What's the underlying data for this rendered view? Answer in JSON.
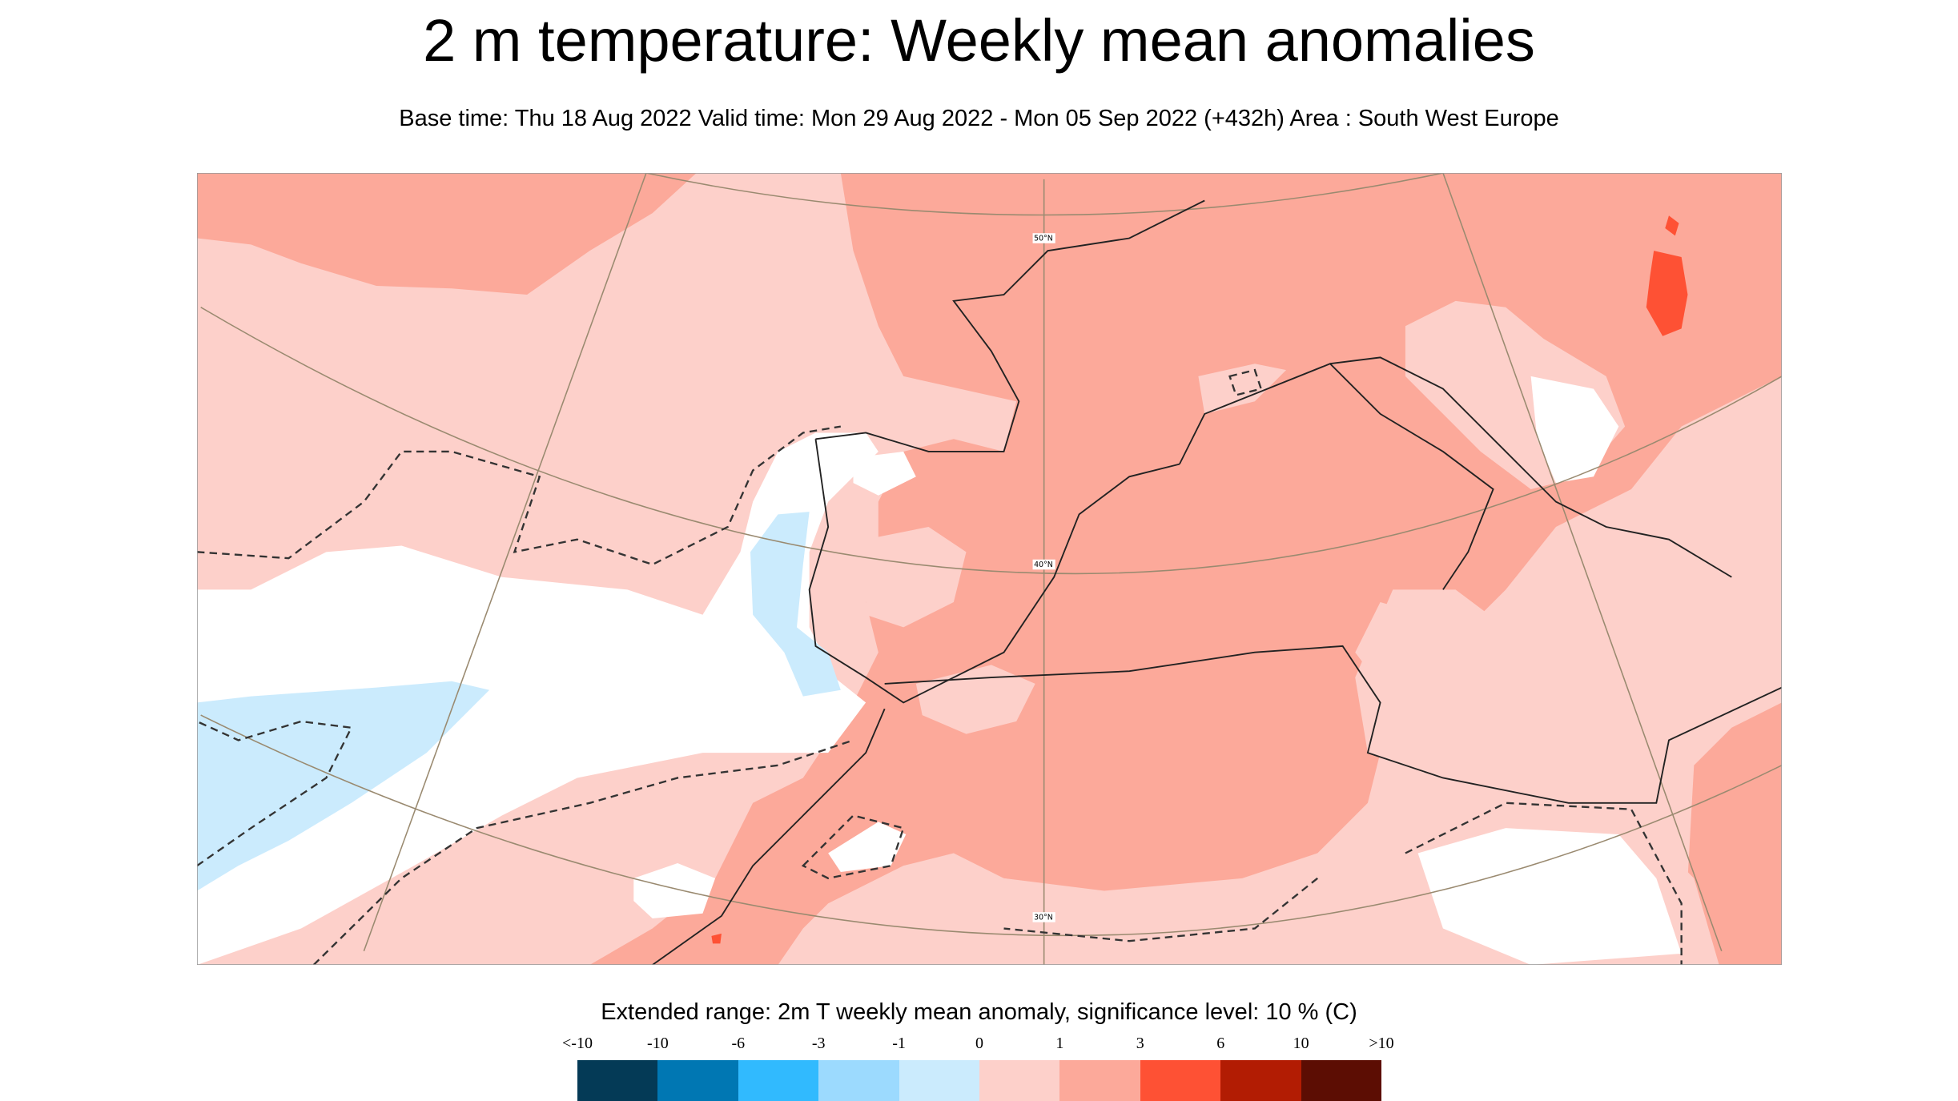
{
  "title": "2 m temperature: Weekly mean anomalies",
  "subtitle": "Base time: Thu 18 Aug 2022 Valid time: Mon 29 Aug 2022 - Mon 05 Sep 2022 (+432h) Area : South West Europe",
  "map": {
    "area": "South West Europe",
    "latitude_labels": [
      "50°N",
      "40°N",
      "30°N"
    ],
    "significance_contour": "dashed"
  },
  "legend": {
    "title": "Extended range: 2m T weekly mean anomaly, significance level: 10 % (C)",
    "labels": [
      "<-10",
      "-10",
      "-6",
      "-3",
      "-1",
      "0",
      "1",
      "3",
      "6",
      "10",
      ">10"
    ],
    "colors": [
      "#043a56",
      "#0077b3",
      "#31bafe",
      "#9cdafe",
      "#cbebfd",
      "#fdd0ca",
      "#fca99a",
      "#fe5134",
      "#b21c03",
      "#5c0d03"
    ]
  },
  "colors": {
    "white_band": "#ffffff",
    "frame": "#999999"
  }
}
